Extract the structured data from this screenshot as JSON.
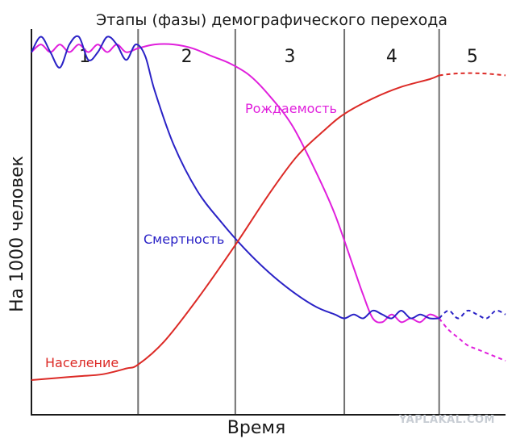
{
  "chart_data": {
    "type": "line",
    "title": "Этапы (фазы) демографического перехода",
    "xlabel": "Время",
    "ylabel": "На 1000 человек",
    "xlim": [
      0,
      100
    ],
    "ylim": [
      0,
      100
    ],
    "stages": [
      "1",
      "2",
      "3",
      "4",
      "5"
    ],
    "stage_boundaries": [
      22.5,
      43,
      66,
      86
    ],
    "watermark": "YAPLAKAL.COM",
    "series": [
      {
        "name": "Рождаемость",
        "color": "#e01fdc",
        "values_solid": [
          [
            0,
            94
          ],
          [
            2,
            96
          ],
          [
            4,
            94
          ],
          [
            6,
            96
          ],
          [
            8,
            94
          ],
          [
            10,
            96
          ],
          [
            12,
            94
          ],
          [
            14,
            96
          ],
          [
            16,
            94
          ],
          [
            18,
            96
          ],
          [
            20,
            94
          ],
          [
            22.5,
            95
          ],
          [
            26,
            96
          ],
          [
            30,
            96
          ],
          [
            34,
            95
          ],
          [
            38,
            93
          ],
          [
            42,
            91
          ],
          [
            46,
            88
          ],
          [
            50,
            83
          ],
          [
            55,
            75
          ],
          [
            60,
            63
          ],
          [
            64,
            52
          ],
          [
            68,
            38
          ],
          [
            70,
            31
          ],
          [
            72,
            25
          ],
          [
            74,
            24
          ],
          [
            76,
            26
          ],
          [
            78,
            24
          ],
          [
            80,
            25
          ],
          [
            82,
            24
          ],
          [
            84,
            26
          ],
          [
            86,
            25
          ]
        ],
        "values_dashed": [
          [
            86,
            25
          ],
          [
            88,
            22
          ],
          [
            90,
            20
          ],
          [
            92,
            18
          ],
          [
            94,
            17
          ],
          [
            96,
            16
          ],
          [
            100,
            14
          ]
        ]
      },
      {
        "name": "Смертность",
        "color": "#2a22c6",
        "values_solid": [
          [
            0,
            94
          ],
          [
            2,
            98
          ],
          [
            4,
            94
          ],
          [
            6,
            90
          ],
          [
            8,
            96
          ],
          [
            10,
            98
          ],
          [
            12,
            92
          ],
          [
            14,
            94
          ],
          [
            16,
            98
          ],
          [
            18,
            96
          ],
          [
            20,
            92
          ],
          [
            22,
            96
          ],
          [
            24,
            93
          ],
          [
            26,
            84
          ],
          [
            30,
            70
          ],
          [
            35,
            58
          ],
          [
            40,
            50
          ],
          [
            45,
            43
          ],
          [
            50,
            37
          ],
          [
            55,
            32
          ],
          [
            60,
            28
          ],
          [
            64,
            26
          ],
          [
            66,
            25
          ],
          [
            68,
            26
          ],
          [
            70,
            25
          ],
          [
            72,
            27
          ],
          [
            74,
            26
          ],
          [
            76,
            25
          ],
          [
            78,
            27
          ],
          [
            80,
            25
          ],
          [
            82,
            26
          ],
          [
            84,
            25
          ],
          [
            86,
            25
          ]
        ],
        "values_dashed": [
          [
            86,
            25
          ],
          [
            88,
            27
          ],
          [
            90,
            25
          ],
          [
            92,
            27
          ],
          [
            94,
            26
          ],
          [
            96,
            25
          ],
          [
            98,
            27
          ],
          [
            100,
            26
          ]
        ]
      },
      {
        "name": "Население",
        "color": "#dc2a26",
        "values_solid": [
          [
            0,
            9
          ],
          [
            5,
            9.5
          ],
          [
            10,
            10
          ],
          [
            15,
            10.5
          ],
          [
            20,
            12
          ],
          [
            22.5,
            13
          ],
          [
            28,
            19
          ],
          [
            35,
            30
          ],
          [
            43,
            44
          ],
          [
            50,
            57
          ],
          [
            56,
            67
          ],
          [
            62,
            74
          ],
          [
            66,
            78
          ],
          [
            72,
            82
          ],
          [
            78,
            85
          ],
          [
            84,
            87
          ],
          [
            86,
            88
          ]
        ],
        "values_dashed": [
          [
            86,
            88
          ],
          [
            90,
            88.5
          ],
          [
            95,
            88.5
          ],
          [
            100,
            88
          ]
        ]
      }
    ]
  }
}
